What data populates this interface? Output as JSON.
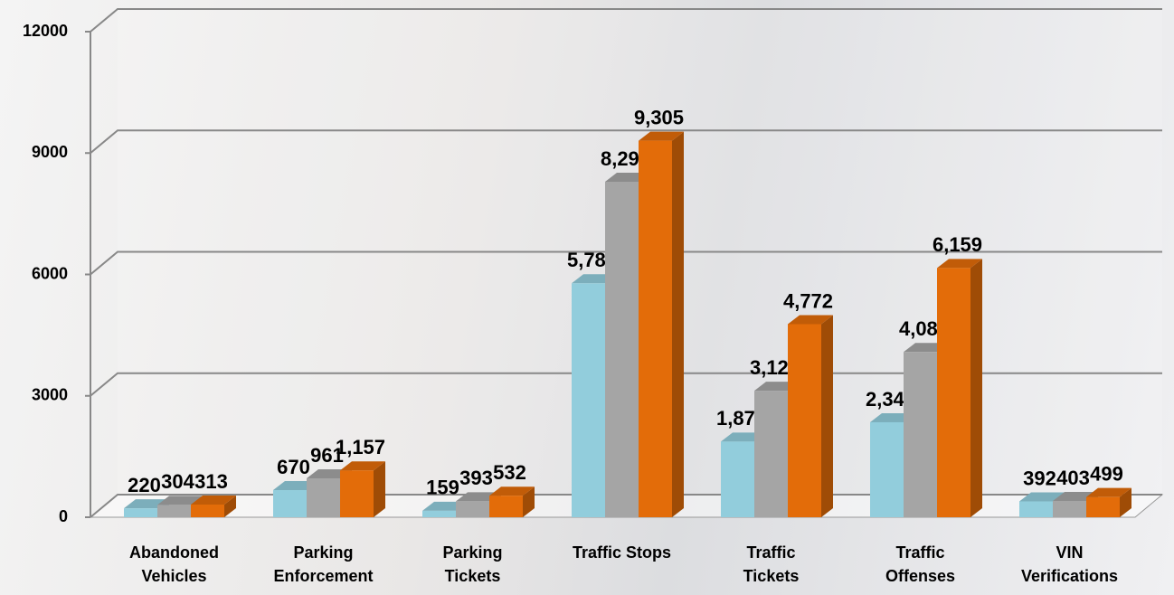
{
  "chart_data": {
    "type": "bar3d",
    "categories": [
      "Abandoned\nVehicles",
      "Parking\nEnforcement",
      "Parking\nTickets",
      "Traffic Stops",
      "Traffic\nTickets",
      "Traffic\nOffenses",
      "VIN\nVerifications"
    ],
    "series": [
      {
        "color": "#92cddc",
        "values": [
          220,
          670,
          159,
          5781,
          1870,
          2347,
          392
        ],
        "value_labels": [
          "220",
          "670",
          "159",
          "5,781",
          "1,870",
          "2,347",
          "392"
        ]
      },
      {
        "color": "#a5a5a5",
        "values": [
          304,
          961,
          393,
          8291,
          3126,
          4083,
          403
        ],
        "value_labels": [
          "304",
          "961",
          "393",
          "8,291",
          "3,126",
          "4,083",
          "403"
        ]
      },
      {
        "color": "#e36c09",
        "values": [
          313,
          1157,
          532,
          9305,
          4772,
          6159,
          499
        ],
        "value_labels": [
          "313",
          "1,157",
          "532",
          "9,305",
          "4,772",
          "6,159",
          "499"
        ]
      }
    ],
    "ylim": [
      0,
      12000
    ],
    "yticks": [
      0,
      3000,
      6000,
      9000,
      12000
    ],
    "grid": true
  }
}
